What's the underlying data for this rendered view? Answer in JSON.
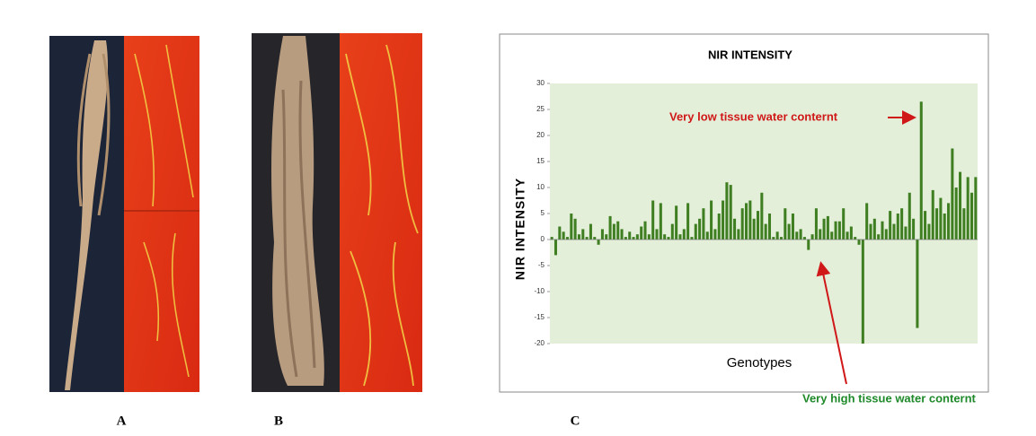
{
  "panel_labels": [
    "A",
    "B",
    "C"
  ],
  "chart_data": {
    "type": "bar",
    "title": "NIR INTENSITY",
    "y_label": "NIR INTENSITY",
    "x_label": "Genotypes",
    "annotations": [
      "Very low tissue water conternt",
      "Very high tissue water conternt"
    ],
    "color": "#3f7f22",
    "plot_background": "#e3efd9",
    "ylim": [
      -20,
      30
    ],
    "yticks": [
      -20,
      -15,
      -10,
      -5,
      0,
      5,
      10,
      15,
      20,
      25,
      30
    ],
    "values": [
      0.5,
      -3,
      2.5,
      1.5,
      0.5,
      5,
      4,
      1,
      2,
      0.5,
      3,
      0.5,
      -1,
      2,
      1,
      4.5,
      3,
      3.5,
      2,
      0.5,
      1.5,
      0.5,
      1,
      2.5,
      3.5,
      1,
      7.5,
      2,
      7,
      1,
      0.5,
      3,
      6.5,
      1,
      2,
      7,
      0.5,
      3,
      4,
      6,
      1.5,
      7.5,
      2,
      5,
      7.5,
      11,
      10.5,
      4,
      2,
      6,
      7,
      7.5,
      4,
      5.5,
      9,
      3,
      5,
      0.5,
      1.5,
      0.5,
      6,
      3,
      5,
      1.5,
      2,
      0.5,
      -2,
      1,
      6,
      2,
      4,
      4.5,
      1.5,
      3.5,
      3.5,
      6,
      1.5,
      2.5,
      0.5,
      -1,
      -20,
      7,
      3,
      4,
      1,
      3.5,
      2,
      5.5,
      3,
      5,
      6,
      2.5,
      9,
      4,
      -17,
      26.5,
      5.5,
      3,
      9.5,
      6,
      8,
      5,
      7,
      17.5,
      10,
      13,
      6,
      12,
      9,
      12
    ]
  }
}
